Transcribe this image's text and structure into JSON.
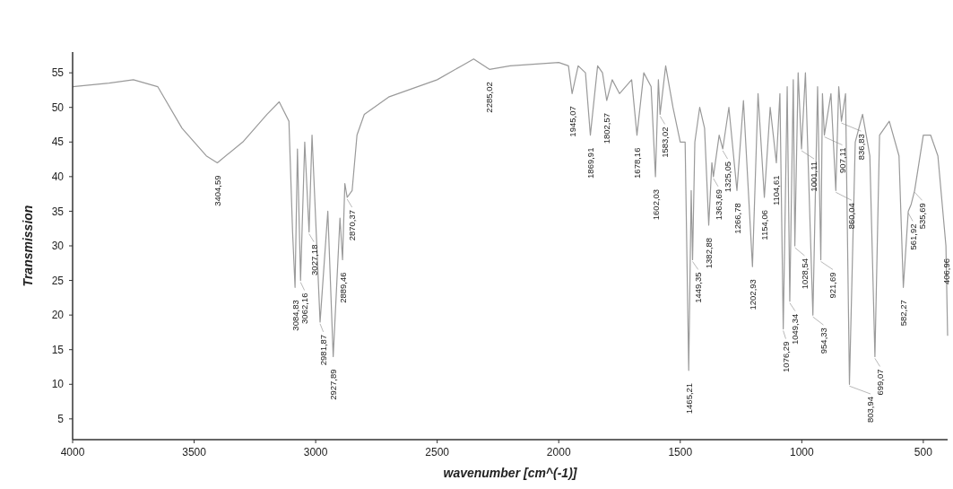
{
  "chart_data": {
    "type": "line",
    "xlabel": "wavenumber [cm^(-1)]",
    "ylabel": "Transmission",
    "xlim": [
      4000,
      400
    ],
    "ylim": [
      2,
      58
    ],
    "xticks": [
      4000,
      3500,
      3000,
      2500,
      2000,
      1500,
      1000,
      500
    ],
    "yticks": [
      5,
      10,
      15,
      20,
      25,
      30,
      35,
      40,
      45,
      50,
      55
    ],
    "grid": false,
    "marker": "none",
    "line_style": "solid",
    "series": [
      {
        "color": "#9a9a9a",
        "x": [
          4000,
          3850,
          3750,
          3650,
          3550,
          3450,
          3404.59,
          3300,
          3200,
          3150,
          3110,
          3095,
          3084.83,
          3075,
          3062.16,
          3045,
          3027.18,
          3015,
          2981.87,
          2950,
          2927.89,
          2900,
          2889.46,
          2880,
          2870.37,
          2850,
          2830,
          2800,
          2700,
          2500,
          2400,
          2350,
          2285.02,
          2200,
          2000,
          1960,
          1945.07,
          1920,
          1890,
          1869.91,
          1840,
          1820,
          1802.57,
          1780,
          1750,
          1700,
          1678.16,
          1650,
          1620,
          1602.03,
          1590,
          1583.02,
          1560,
          1530,
          1500,
          1480,
          1465.21,
          1455,
          1449.35,
          1440,
          1420,
          1400,
          1382.88,
          1370,
          1363.69,
          1340,
          1325.05,
          1300,
          1266.78,
          1240,
          1202.93,
          1180,
          1154.06,
          1130,
          1104.61,
          1090,
          1076.29,
          1060,
          1049.34,
          1035,
          1028.54,
          1015,
          1001.11,
          985,
          954.33,
          935,
          921.69,
          915,
          907.11,
          880,
          860.04,
          848,
          836.83,
          820,
          803.94,
          780,
          750,
          720,
          699.07,
          680,
          640,
          600,
          582.27,
          561.92,
          550,
          535.69,
          500,
          470,
          440,
          406.96,
          400
        ],
        "values": [
          53,
          53.5,
          54,
          53,
          47,
          43,
          42,
          45,
          49,
          50.8,
          48,
          32,
          24,
          44,
          25,
          45,
          32,
          46,
          19,
          35,
          14,
          34,
          28,
          39,
          37,
          38,
          46,
          49,
          51.5,
          54,
          56,
          57,
          55.5,
          56,
          56.5,
          56,
          52,
          56,
          55,
          46,
          56,
          55,
          51,
          54,
          52,
          54,
          46,
          55,
          53,
          40,
          54,
          49,
          56,
          50,
          45,
          45,
          12,
          38,
          28,
          45,
          50,
          47,
          33,
          42,
          40,
          46,
          44,
          50,
          38,
          51,
          27,
          52,
          37,
          50,
          42,
          52,
          18,
          53,
          22,
          54,
          30,
          55,
          44,
          55,
          20,
          53,
          28,
          52,
          46,
          52,
          38,
          53,
          48,
          52,
          10,
          45,
          49,
          43,
          14,
          46,
          48,
          43,
          24,
          35,
          36,
          38,
          46,
          46,
          43,
          30,
          17
        ]
      }
    ],
    "annotations": [
      {
        "text": "3404,59",
        "x": 3404.59,
        "y": 42
      },
      {
        "text": "3084,83",
        "x": 3084.83,
        "y": 24
      },
      {
        "text": "3062,16",
        "x": 3062.16,
        "y": 25
      },
      {
        "text": "3027,18",
        "x": 3027.18,
        "y": 32
      },
      {
        "text": "2981,87",
        "x": 2981.87,
        "y": 19
      },
      {
        "text": "2927,89",
        "x": 2927.89,
        "y": 14
      },
      {
        "text": "2889,46",
        "x": 2889.46,
        "y": 28
      },
      {
        "text": "2870,37",
        "x": 2870.37,
        "y": 37
      },
      {
        "text": "2285,02",
        "x": 2285.02,
        "y": 55.5
      },
      {
        "text": "1945,07",
        "x": 1945.07,
        "y": 52
      },
      {
        "text": "1869,91",
        "x": 1869.91,
        "y": 46
      },
      {
        "text": "1802,57",
        "x": 1802.57,
        "y": 51
      },
      {
        "text": "1678,16",
        "x": 1678.16,
        "y": 46
      },
      {
        "text": "1602,03",
        "x": 1602.03,
        "y": 40
      },
      {
        "text": "1583,02",
        "x": 1583.02,
        "y": 49
      },
      {
        "text": "1465,21",
        "x": 1465.21,
        "y": 12
      },
      {
        "text": "1449,35",
        "x": 1449.35,
        "y": 28
      },
      {
        "text": "1382,88",
        "x": 1382.88,
        "y": 33
      },
      {
        "text": "1363,69",
        "x": 1363.69,
        "y": 40
      },
      {
        "text": "1325,05",
        "x": 1325.05,
        "y": 44
      },
      {
        "text": "1266,78",
        "x": 1266.78,
        "y": 38
      },
      {
        "text": "1202,93",
        "x": 1202.93,
        "y": 27
      },
      {
        "text": "1154,06",
        "x": 1154.06,
        "y": 37
      },
      {
        "text": "1104,61",
        "x": 1104.61,
        "y": 42
      },
      {
        "text": "1076,29",
        "x": 1076.29,
        "y": 18
      },
      {
        "text": "1049,34",
        "x": 1049.34,
        "y": 22
      },
      {
        "text": "1028,54",
        "x": 1028.54,
        "y": 30
      },
      {
        "text": "1001,11",
        "x": 1001.11,
        "y": 44
      },
      {
        "text": "954,33",
        "x": 954.33,
        "y": 20
      },
      {
        "text": "921,69",
        "x": 921.69,
        "y": 28
      },
      {
        "text": "907,11",
        "x": 907.11,
        "y": 46
      },
      {
        "text": "860,04",
        "x": 860.04,
        "y": 38
      },
      {
        "text": "836,83",
        "x": 836.83,
        "y": 48
      },
      {
        "text": "803,94",
        "x": 803.94,
        "y": 10
      },
      {
        "text": "699,07",
        "x": 699.07,
        "y": 14
      },
      {
        "text": "582,27",
        "x": 582.27,
        "y": 24
      },
      {
        "text": "561,92",
        "x": 561.92,
        "y": 35
      },
      {
        "text": "535,69",
        "x": 535.69,
        "y": 38
      },
      {
        "text": "406,96",
        "x": 406.96,
        "y": 30
      }
    ]
  }
}
